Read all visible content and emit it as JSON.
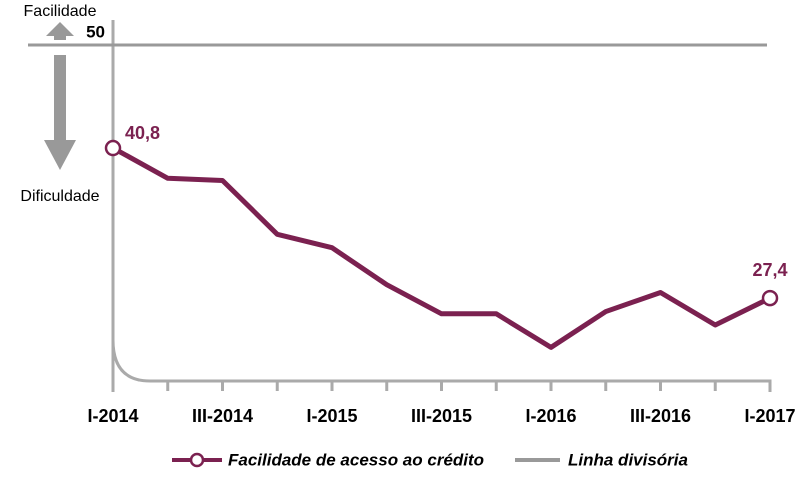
{
  "chart_data": {
    "type": "line",
    "categories": [
      "I-2014",
      null,
      "III-2014",
      null,
      "I-2015",
      null,
      "III-2015",
      null,
      "I-2016",
      null,
      "III-2016",
      null,
      "I-2017"
    ],
    "series": [
      {
        "name": "Facilidade de acesso ao crédito",
        "color": "#7b2150",
        "values": [
          40.8,
          38.1,
          37.9,
          33.1,
          31.9,
          28.6,
          26.0,
          26.0,
          23.0,
          26.2,
          27.9,
          25.0,
          27.4
        ],
        "value_labels": [
          "40,8",
          null,
          null,
          null,
          null,
          null,
          null,
          null,
          null,
          null,
          null,
          null,
          "27,4"
        ]
      }
    ],
    "divider": {
      "name": "Linha divisória",
      "value": 50,
      "color": "#999999"
    },
    "annotations": {
      "up": "Facilidade",
      "down": "Dificuldade"
    },
    "ylim": [
      20,
      50
    ]
  }
}
